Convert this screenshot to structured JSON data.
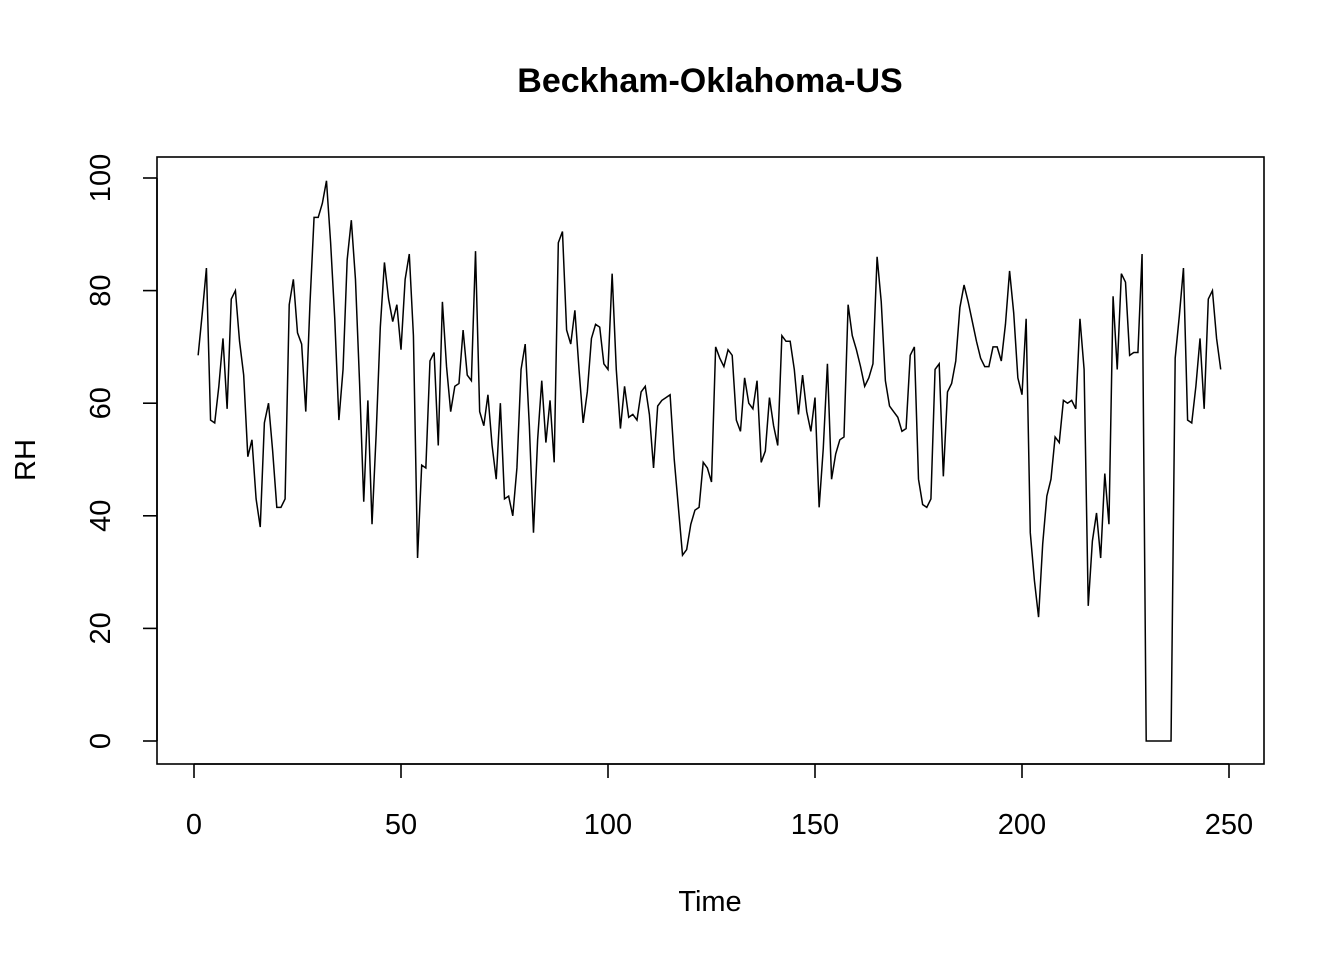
{
  "chart_data": {
    "type": "line",
    "title": "Beckham-Oklahoma-US",
    "xlabel": "Time",
    "ylabel": "RH",
    "xlim": [
      1,
      248
    ],
    "ylim": [
      0,
      100
    ],
    "xticks": [
      0,
      50,
      100,
      150,
      200,
      250
    ],
    "yticks": [
      0,
      20,
      40,
      60,
      80,
      100
    ],
    "grid": false,
    "legend": "none",
    "line_color": "#000000",
    "series": [
      {
        "x_start": 1,
        "x_step": 1,
        "values": [
          68.5,
          76,
          84,
          57,
          56.5,
          63,
          71.5,
          59,
          78.5,
          80,
          71,
          65,
          50.5,
          53.5,
          43,
          38,
          56.5,
          60,
          51.5,
          41.5,
          41.5,
          43,
          77.5,
          82,
          72.5,
          70.5,
          58.5,
          77.5,
          93,
          93,
          95.5,
          99.5,
          88.5,
          75,
          57,
          66,
          85.5,
          92.5,
          82,
          63.5,
          42.5,
          60.5,
          38.5,
          54.5,
          73.5,
          85,
          78.5,
          74.5,
          77.5,
          69.5,
          82,
          86.5,
          72,
          32.5,
          49,
          48.5,
          67.5,
          69,
          52.5,
          78,
          66.5,
          58.5,
          63,
          63.5,
          73,
          65,
          64,
          87,
          58.5,
          56,
          61.5,
          52.5,
          46.5,
          60,
          43,
          43.5,
          40,
          48.5,
          66,
          70.5,
          56,
          37,
          53.5,
          64,
          53,
          60.5,
          49.5,
          88.5,
          90.5,
          73,
          70.5,
          76.5,
          66,
          56.5,
          62,
          71.5,
          74,
          73.5,
          67,
          66,
          83,
          66,
          55.5,
          63,
          57.5,
          58,
          57,
          62,
          63,
          58,
          48.5,
          59.5,
          60.5,
          61,
          61.5,
          50,
          41.5,
          33,
          34,
          38.5,
          41,
          41.5,
          49.5,
          48.5,
          46,
          70,
          68,
          66.5,
          69.5,
          68.5,
          57,
          55,
          64.5,
          60,
          59,
          64,
          49.5,
          51.5,
          61,
          56,
          52.5,
          72,
          71,
          71,
          66,
          58,
          65,
          58.5,
          55,
          61,
          41.5,
          52,
          67,
          46.5,
          51,
          53.5,
          54,
          77.5,
          72,
          69.5,
          66.5,
          63,
          64.5,
          67,
          86,
          78,
          64,
          59.5,
          58.5,
          57.5,
          55,
          55.5,
          68.5,
          70,
          46.5,
          42,
          41.5,
          43,
          66,
          67,
          47,
          62,
          63.5,
          67.5,
          77,
          81,
          78,
          74.5,
          71,
          68,
          66.5,
          66.5,
          70,
          70,
          67.5,
          74,
          83.5,
          76,
          64.5,
          61.5,
          75,
          37,
          28.5,
          22,
          35,
          43.5,
          46.5,
          54,
          53,
          60.5,
          60,
          60.5,
          59,
          75,
          66,
          24,
          35.5,
          40.5,
          32.5,
          47.5,
          38.5,
          79,
          66,
          83,
          81.5,
          68.5,
          69,
          69,
          86.5,
          0,
          0,
          0,
          0,
          0,
          0,
          0,
          68,
          75.5,
          84,
          57,
          56.5,
          63,
          71.5,
          59,
          78.5,
          80,
          71.5,
          66
        ]
      }
    ]
  }
}
